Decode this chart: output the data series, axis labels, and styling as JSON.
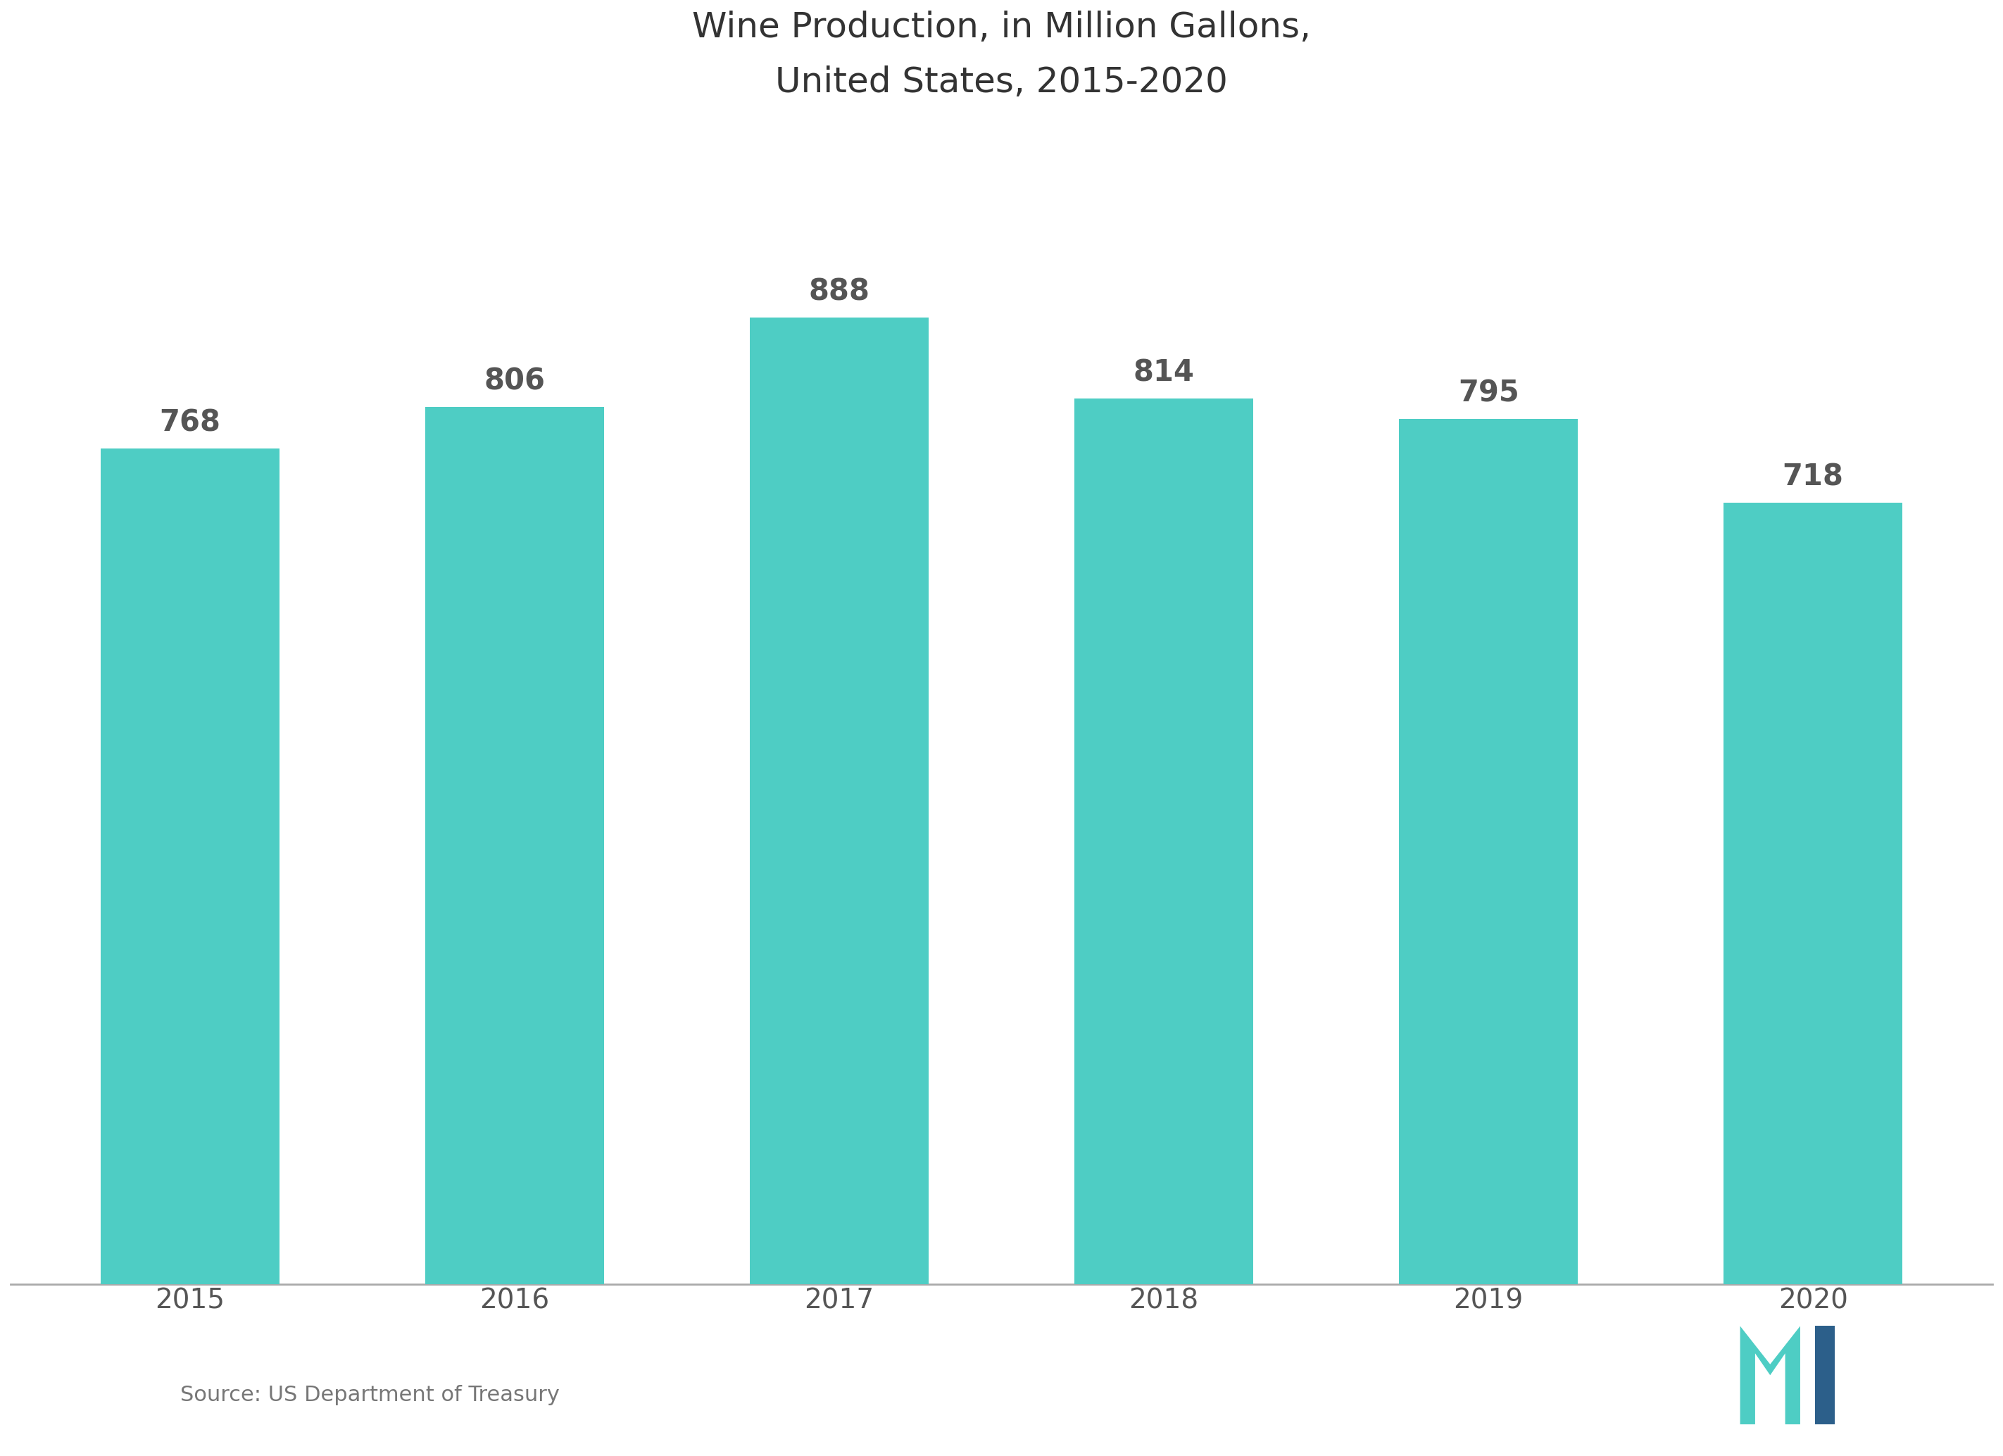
{
  "title_line1": "Wine Production, in Million Gallons,",
  "title_line2": "United States, 2015-2020",
  "categories": [
    "2015",
    "2016",
    "2017",
    "2018",
    "2019",
    "2020"
  ],
  "values": [
    768,
    806,
    888,
    814,
    795,
    718
  ],
  "bar_color": "#4ecdc4",
  "background_color": "#ffffff",
  "title_color": "#333333",
  "label_color": "#555555",
  "tick_color": "#555555",
  "spine_color": "#aaaaaa",
  "source_text": "Source: US Department of Treasury",
  "title_fontsize": 36,
  "label_fontsize": 30,
  "tick_fontsize": 28,
  "source_fontsize": 22,
  "ylim": [
    0,
    1050
  ],
  "bar_width": 0.55
}
